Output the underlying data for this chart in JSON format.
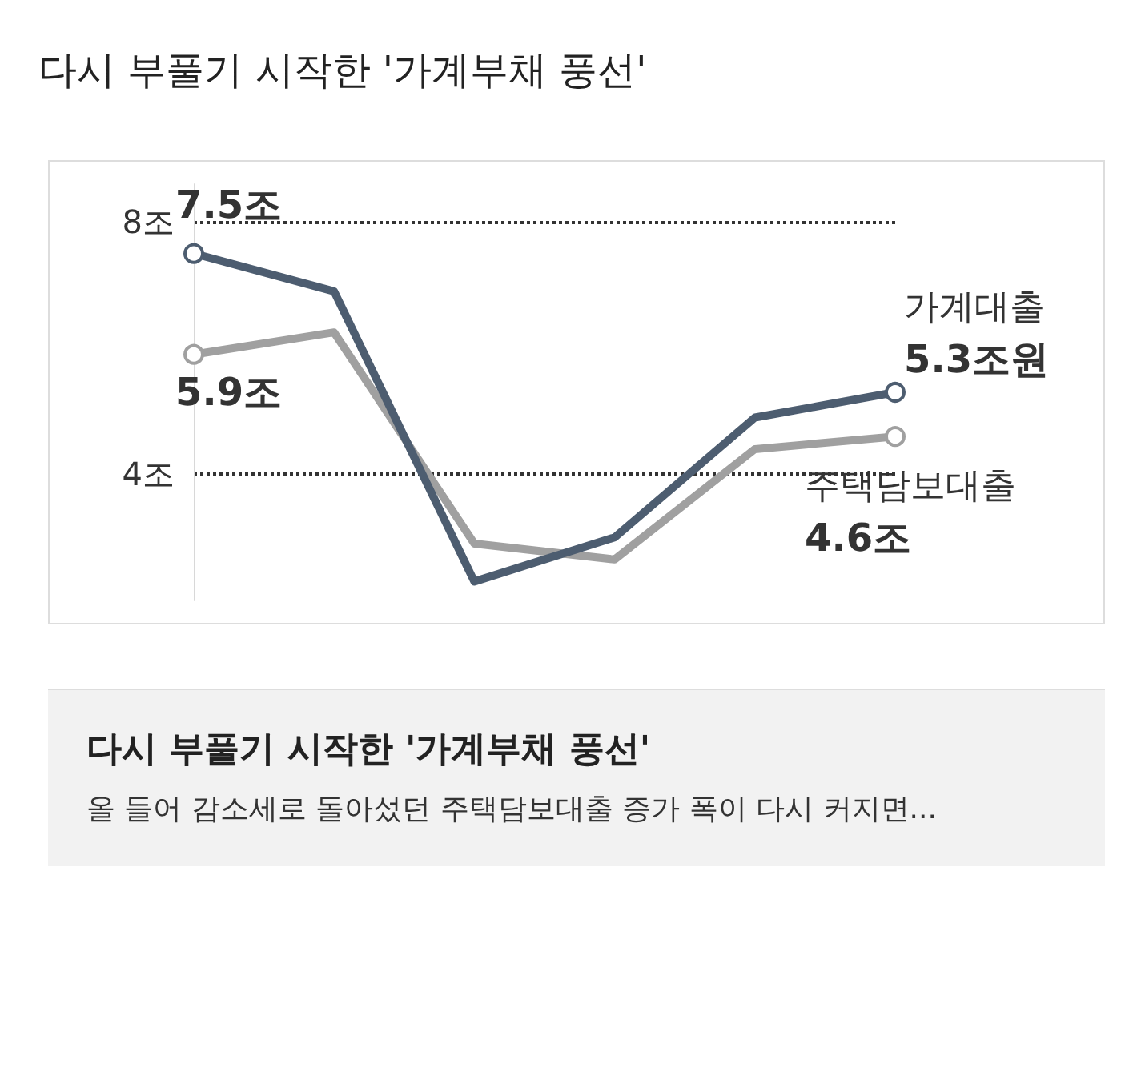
{
  "chart_data": {
    "type": "line",
    "title": "다시 부풀기 시작한 '가계부채 풍선'",
    "annotations": [
      "다시 부풀기 시작한 '가계부채 풍선'",
      "올 들어 감소세로 돌아섰던 주택담보대출 증가 폭이 다시 커지면..."
    ],
    "categories": [
      null,
      null,
      null,
      null,
      null,
      null
    ],
    "series": [
      {
        "name": "가계대출",
        "color": "#4d5d70",
        "values": [
          7.5,
          6.9,
          2.3,
          3.0,
          4.9,
          5.3
        ],
        "value_labels": [
          "7.5조",
          null,
          null,
          null,
          null,
          "5.3조원"
        ]
      },
      {
        "name": "주택담보대출",
        "color": "#a0a0a0",
        "values": [
          5.9,
          6.25,
          2.9,
          2.65,
          4.4,
          4.6
        ],
        "value_labels": [
          "5.9조",
          null,
          null,
          null,
          null,
          "4.6조"
        ]
      }
    ],
    "ylim": [
      2,
      8.6
    ],
    "yticks": [
      {
        "value": 4,
        "label": "4조"
      },
      {
        "value": 8,
        "label": "8조"
      }
    ],
    "grid": "y",
    "line_style": "solid",
    "legend": false
  }
}
